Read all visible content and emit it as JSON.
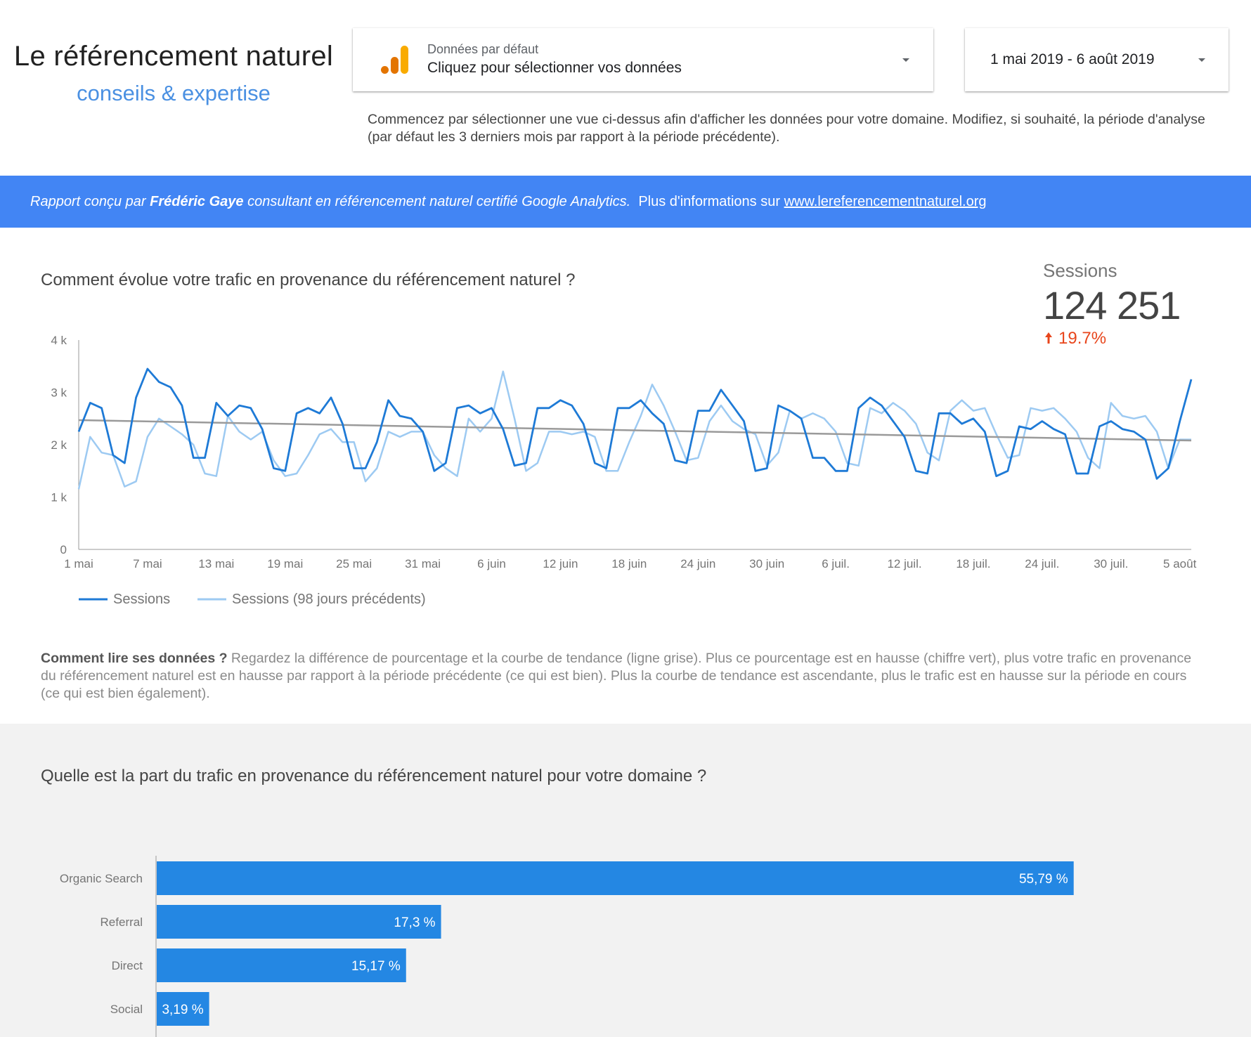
{
  "header": {
    "brand_title": "Le référencement naturel",
    "brand_subtitle": "conseils & expertise",
    "data_selector": {
      "label": "Données par défaut",
      "value": "Cliquez pour sélectionner vos données",
      "icon": "google-analytics-icon"
    },
    "date_selector": {
      "value": "1 mai 2019 - 6 août 2019"
    },
    "intro": "Commencez par sélectionner une vue ci-dessus afin d'afficher les données pour votre domaine. Modifiez, si souhaité, la période d'analyse (par défaut les 3 derniers mois par rapport à la période précédente)."
  },
  "banner": {
    "prefix": "Rapport conçu par ",
    "author": "Frédéric Gaye",
    "suffix": " consultant en référencement naturel certifié Google Analytics.",
    "info_text": "Plus d'informations sur ",
    "link_text": "www.lereferencementnaturel.org"
  },
  "section1": {
    "question": "Comment évolue votre trafic en provenance du référencement naturel ?",
    "howto_bold": "Comment lire ses données ?",
    "howto_text": " Regardez la différence de pourcentage et la courbe de tendance (ligne grise). Plus ce pourcentage est en hausse (chiffre vert), plus votre trafic en provenance du référencement naturel est en hausse par rapport à la période précédente (ce qui est bien). Plus la courbe de tendance est ascendante, plus le trafic est en hausse sur la période en cours (ce qui est bien également)."
  },
  "kpi": {
    "label": "Sessions",
    "value": "124 251",
    "delta": "19.7%",
    "delta_color": "#e8451b",
    "delta_icon": "arrow-up-icon"
  },
  "section2": {
    "question": "Quelle est la part du trafic en provenance du référencement naturel pour votre domaine ?"
  },
  "colors": {
    "current": "#1e7ad6",
    "previous": "#9dcaf2",
    "trend": "#9a9a9a",
    "bar": "#2487e3",
    "banner": "#4285f4"
  },
  "chart_data": [
    {
      "type": "line",
      "ylim": [
        0,
        4000
      ],
      "y_ticks": [
        "0",
        "1 k",
        "2 k",
        "3 k",
        "4 k"
      ],
      "x_ticks": [
        "1 mai",
        "7 mai",
        "13 mai",
        "19 mai",
        "25 mai",
        "31 mai",
        "6 juin",
        "12 juin",
        "18 juin",
        "24 juin",
        "30 juin",
        "6 juil.",
        "12 juil.",
        "18 juil.",
        "24 juil.",
        "30 juil.",
        "5 août"
      ],
      "legend_position": "bottom-left",
      "series": [
        {
          "name": "Sessions",
          "values": [
            2250,
            2800,
            2700,
            1800,
            1650,
            2900,
            3450,
            3200,
            3100,
            2750,
            1750,
            1750,
            2800,
            2550,
            2750,
            2700,
            2300,
            1550,
            1500,
            2600,
            2700,
            2600,
            2900,
            2400,
            1550,
            1550,
            2050,
            2850,
            2550,
            2500,
            2250,
            1500,
            1650,
            2700,
            2750,
            2600,
            2700,
            2300,
            1600,
            1650,
            2700,
            2700,
            2850,
            2750,
            2400,
            1650,
            1550,
            2700,
            2700,
            2850,
            2600,
            2400,
            1700,
            1650,
            2650,
            2650,
            3050,
            2750,
            2450,
            1500,
            1550,
            2750,
            2650,
            2500,
            1750,
            1750,
            1500,
            1500,
            2700,
            2900,
            2750,
            2450,
            2150,
            1500,
            1450,
            2600,
            2600,
            2400,
            2500,
            2250,
            1400,
            1500,
            2350,
            2300,
            2450,
            2300,
            2200,
            1450,
            1450,
            2350,
            2450,
            2300,
            2250,
            2100,
            1350,
            1550,
            2450,
            3250
          ],
          "color": "#1e7ad6"
        },
        {
          "name": "Sessions (98 jours précédents)",
          "values": [
            1150,
            2150,
            1850,
            1800,
            1200,
            1300,
            2150,
            2500,
            2350,
            2200,
            2000,
            1450,
            1400,
            2550,
            2250,
            2100,
            2250,
            1700,
            1400,
            1450,
            1800,
            2200,
            2300,
            2050,
            2050,
            1300,
            1550,
            2250,
            2150,
            2250,
            2250,
            1800,
            1550,
            1400,
            2500,
            2250,
            2500,
            3400,
            2500,
            1500,
            1650,
            2250,
            2250,
            2200,
            2250,
            2150,
            1500,
            1500,
            2050,
            2550,
            3150,
            2750,
            2250,
            1700,
            1750,
            2450,
            2750,
            2450,
            2300,
            2200,
            1600,
            1850,
            2650,
            2500,
            2600,
            2500,
            2250,
            1650,
            1600,
            2700,
            2600,
            2800,
            2650,
            2400,
            1850,
            1700,
            2650,
            2850,
            2650,
            2700,
            2200,
            1750,
            1800,
            2700,
            2650,
            2700,
            2500,
            2250,
            1750,
            1550,
            2800,
            2550,
            2500,
            2550,
            2250,
            1550,
            2100,
            2100
          ],
          "color": "#9dcaf2"
        }
      ],
      "trend": [
        2470,
        2080
      ]
    },
    {
      "type": "bar",
      "orientation": "horizontal",
      "categories": [
        "Organic Search",
        "Referral",
        "Direct",
        "Social"
      ],
      "values": [
        55.79,
        17.3,
        15.17,
        3.19
      ],
      "labels": [
        "55,79 %",
        "17,3 %",
        "15,17 %",
        "3,19 %"
      ],
      "xlim": [
        0,
        57
      ]
    }
  ]
}
